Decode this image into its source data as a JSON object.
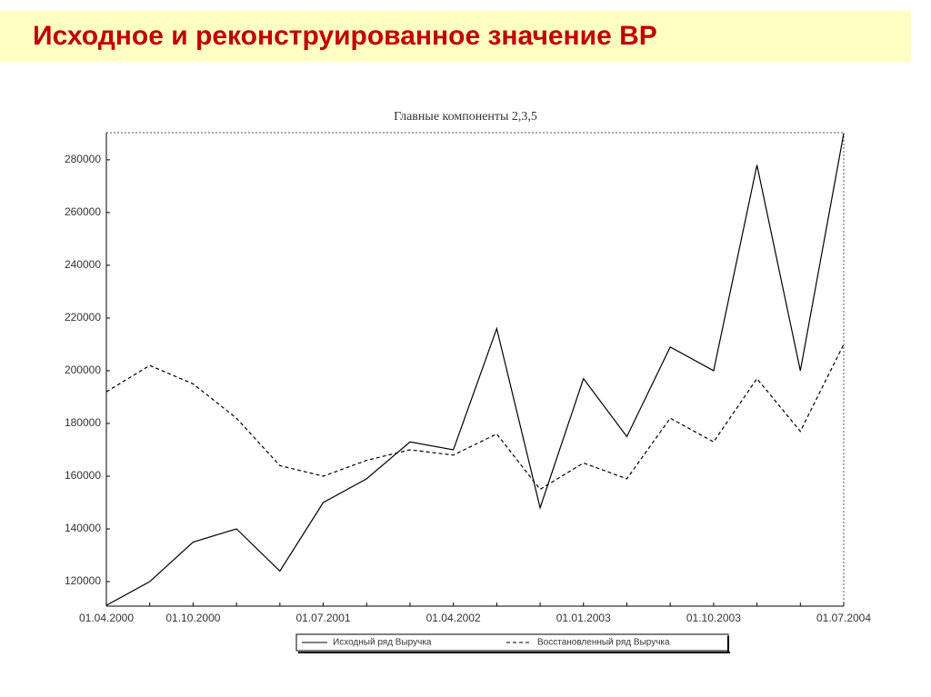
{
  "title": "Исходное и реконструированное значение  ВР",
  "chart_data": {
    "type": "line",
    "title": "Главные компоненты  2,3,5",
    "categories": [
      "01.04.2000",
      null,
      "01.10.2000",
      null,
      null,
      "01.07.2001",
      null,
      null,
      "01.04.2002",
      null,
      null,
      "01.01.2003",
      null,
      null,
      "01.10.2003",
      null,
      null,
      "01.07.2004"
    ],
    "series": [
      {
        "name": "Исходный ряд Выручка",
        "color": "#000000",
        "style": "solid",
        "values": [
          111000,
          120000,
          135000,
          140000,
          124000,
          150000,
          159000,
          173000,
          170000,
          216000,
          148000,
          197000,
          175000,
          209000,
          200000,
          278000,
          200000,
          290000
        ]
      },
      {
        "name": "Восстановленный ряд Выручка",
        "color": "#000000",
        "style": "dashed",
        "values": [
          192000,
          202000,
          195000,
          182000,
          164000,
          160000,
          166000,
          170000,
          168000,
          176000,
          155000,
          165000,
          159000,
          182000,
          173000,
          197000,
          177000,
          210000
        ]
      }
    ],
    "ylim": [
      110700,
      290300
    ],
    "yticks": [
      120000,
      140000,
      160000,
      180000,
      200000,
      220000,
      240000,
      260000,
      280000
    ],
    "legend": "bottom"
  }
}
